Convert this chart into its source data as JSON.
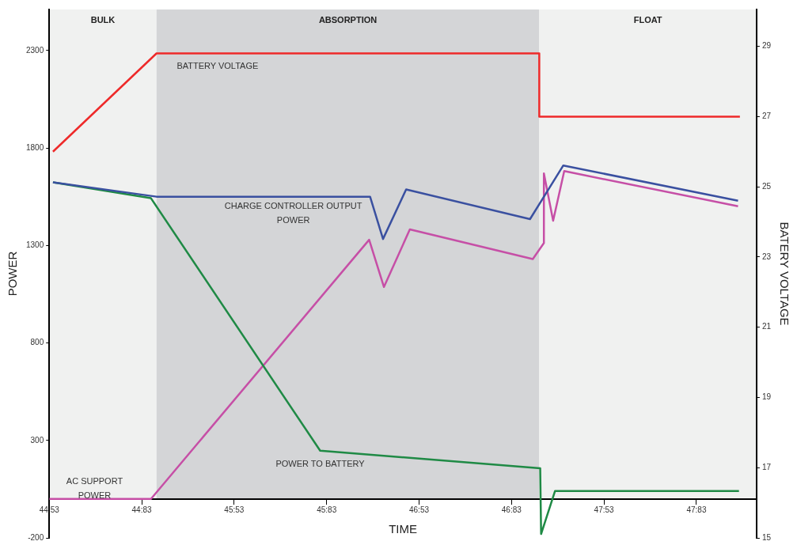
{
  "chart_data": {
    "type": "line",
    "xlabel": "TIME",
    "ylabel": "POWER",
    "y2label": "BATERY VOLTAGE",
    "xlim": [
      44.883,
      48.708
    ],
    "xticks": [
      {
        "value": 44.883,
        "label": "44:53"
      },
      {
        "value": 45.383,
        "label": "44:83"
      },
      {
        "value": 45.883,
        "label": "45:53"
      },
      {
        "value": 46.383,
        "label": "45:83"
      },
      {
        "value": 46.883,
        "label": "46:53"
      },
      {
        "value": 47.383,
        "label": "46:83"
      },
      {
        "value": 47.883,
        "label": "47:53"
      },
      {
        "value": 48.383,
        "label": "47:83"
      }
    ],
    "ylim": [
      -200,
      2510
    ],
    "yticks": [
      -200,
      300,
      800,
      1300,
      1800,
      2300
    ],
    "y2lim": [
      15,
      30.05
    ],
    "y2ticks": [
      15,
      17,
      19,
      21,
      23,
      25,
      27,
      29
    ],
    "grid": false,
    "legend": false,
    "marker": "none",
    "line_style": "solid",
    "bands": [
      {
        "axis": "x",
        "from": 44.883,
        "to": 45.463,
        "label": "BULK",
        "color": "#f0f1f0"
      },
      {
        "axis": "x",
        "from": 45.463,
        "to": 47.533,
        "label": "ABSORPTION",
        "color": "#d4d5d7"
      },
      {
        "axis": "x",
        "from": 47.533,
        "to": 48.708,
        "label": "FLOAT",
        "color": "#f0f1f0"
      }
    ],
    "series": [
      {
        "name": "BATTERY VOLTAGE",
        "color": "#ee2a2a",
        "axis": "y2",
        "x": [
          44.903,
          45.463,
          47.533,
          47.533,
          48.618
        ],
        "values": [
          26,
          28.8,
          28.8,
          27,
          27
        ]
      },
      {
        "name": "CHARGE CONTROLLER OUTPUT POWER",
        "color": "#3a50a0",
        "x": [
          44.903,
          45.463,
          46.618,
          46.688,
          46.813,
          47.483,
          47.663,
          48.608
        ],
        "values": [
          1624,
          1550,
          1550,
          1333,
          1587,
          1435,
          1710,
          1529
        ]
      },
      {
        "name": "POWER TO BATTERY",
        "color": "#1f8a45",
        "x": [
          44.903,
          45.433,
          46.348,
          47.538,
          47.543,
          47.618,
          48.613
        ],
        "values": [
          1624,
          1542,
          247,
          157,
          -180,
          40,
          40
        ]
      },
      {
        "name": "AC SUPPORT POWER",
        "color": "#c64fa6",
        "x": [
          44.883,
          45.433,
          46.613,
          46.693,
          46.833,
          47.498,
          47.558,
          47.558,
          47.608,
          47.668,
          48.608
        ],
        "values": [
          0,
          0,
          1329,
          1087,
          1382,
          1230,
          1312,
          1669,
          1427,
          1681,
          1501
        ]
      }
    ]
  }
}
